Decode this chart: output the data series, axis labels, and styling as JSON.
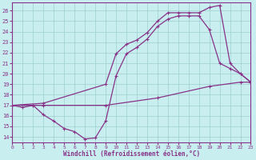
{
  "xlabel": "Windchill (Refroidissement éolien,°C)",
  "bg_color": "#c8eef0",
  "grid_color": "#9ecece",
  "line_color": "#883388",
  "xlim": [
    0,
    23
  ],
  "ylim": [
    13.5,
    26.8
  ],
  "xticks": [
    0,
    1,
    2,
    3,
    4,
    5,
    6,
    7,
    8,
    9,
    10,
    11,
    12,
    13,
    14,
    15,
    16,
    17,
    18,
    19,
    20,
    21,
    22,
    23
  ],
  "yticks": [
    14,
    15,
    16,
    17,
    18,
    19,
    20,
    21,
    22,
    23,
    24,
    25,
    26
  ],
  "line1_x": [
    0,
    2,
    3,
    9,
    14,
    19,
    22,
    23
  ],
  "line1_y": [
    17.0,
    17.0,
    17.0,
    17.0,
    17.7,
    18.8,
    19.2,
    19.2
  ],
  "line2_x": [
    0,
    1,
    2,
    3,
    4,
    5,
    6,
    7,
    8,
    9,
    10,
    11,
    12,
    13,
    14,
    15,
    16,
    17,
    18,
    19,
    20,
    21,
    22,
    23
  ],
  "line2_y": [
    17.0,
    16.8,
    17.0,
    16.1,
    15.5,
    14.8,
    14.5,
    13.8,
    13.9,
    15.5,
    19.8,
    21.9,
    22.5,
    23.3,
    24.5,
    25.2,
    25.5,
    25.5,
    25.5,
    24.2,
    21.0,
    20.5,
    20.0,
    19.2
  ],
  "line3_x": [
    0,
    3,
    9,
    10,
    11,
    12,
    13,
    14,
    15,
    16,
    17,
    18,
    19,
    20,
    21,
    22,
    23
  ],
  "line3_y": [
    17.0,
    17.2,
    19.0,
    21.9,
    22.8,
    23.2,
    23.9,
    25.0,
    25.8,
    25.8,
    25.8,
    25.8,
    26.3,
    26.5,
    21.0,
    20.0,
    19.2
  ]
}
